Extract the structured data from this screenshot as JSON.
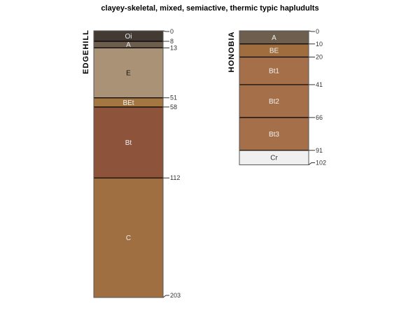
{
  "title": "clayey-skeletal, mixed, semiactive, thermic typic hapludults",
  "profiles": [
    {
      "name": "EDGEHILL",
      "horizons": [
        {
          "name": "Oi",
          "top": 0,
          "bottom": 8,
          "color": "#433a33",
          "text_color": "#e8e8e8"
        },
        {
          "name": "A",
          "top": 8,
          "bottom": 13,
          "color": "#6d5d4c",
          "text_color": "#e8e8e8"
        },
        {
          "name": "E",
          "top": 13,
          "bottom": 51,
          "color": "#a99276",
          "text_color": "#111111"
        },
        {
          "name": "BEt",
          "top": 51,
          "bottom": 58,
          "color": "#a37642",
          "text_color": "#f0f0f0"
        },
        {
          "name": "Bt",
          "top": 58,
          "bottom": 112,
          "color": "#8d533b",
          "text_color": "#f0f0f0"
        },
        {
          "name": "C",
          "top": 112,
          "bottom": 203,
          "color": "#a06f41",
          "text_color": "#f0f0f0"
        }
      ],
      "depth_labels": [
        "0",
        "8",
        "13",
        "51",
        "58",
        "112",
        "203"
      ]
    },
    {
      "name": "HONOBIA",
      "horizons": [
        {
          "name": "A",
          "top": 0,
          "bottom": 10,
          "color": "#6e5e4e",
          "text_color": "#f0f0f0"
        },
        {
          "name": "BE",
          "top": 10,
          "bottom": 20,
          "color": "#a06e3e",
          "text_color": "#f0f0f0"
        },
        {
          "name": "Bt1",
          "top": 20,
          "bottom": 41,
          "color": "#a56f4a",
          "text_color": "#f0f0f0"
        },
        {
          "name": "Bt2",
          "top": 41,
          "bottom": 66,
          "color": "#a56f4a",
          "text_color": "#f0f0f0"
        },
        {
          "name": "Bt3",
          "top": 66,
          "bottom": 91,
          "color": "#a56f4a",
          "text_color": "#f0f0f0"
        },
        {
          "name": "Cr",
          "top": 91,
          "bottom": 102,
          "color": "#f0f0f0",
          "text_color": "#333333"
        }
      ],
      "depth_labels": [
        "0",
        "10",
        "20",
        "41",
        "66",
        "91",
        "102"
      ]
    }
  ]
}
